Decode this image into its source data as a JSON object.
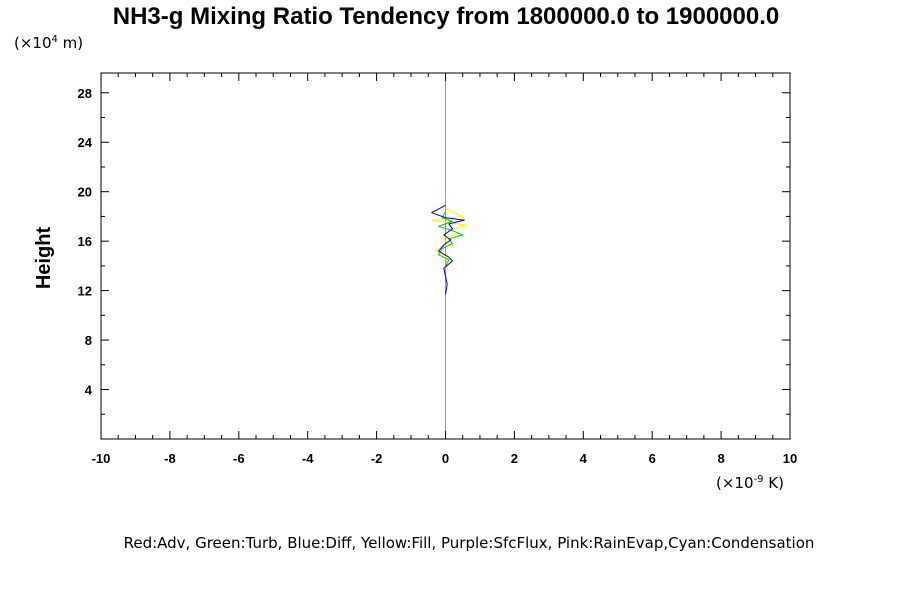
{
  "chart_data": {
    "type": "line",
    "title": "NH3-g Mixing Ratio Tendency from 1800000.0 to 1900000.0",
    "ylabel": "Height",
    "xlabel": "",
    "x_unit": {
      "prefix": "(×10",
      "exp": "-9",
      "suffix": " K)"
    },
    "y_unit": {
      "prefix": "(×10",
      "exp": "4",
      "suffix": " m)"
    },
    "xlim": [
      -10,
      10
    ],
    "ylim": [
      0,
      29.6
    ],
    "x_major_ticks": [
      -10,
      -8,
      -6,
      -4,
      -2,
      0,
      2,
      4,
      6,
      8,
      10
    ],
    "x_tick_labels": [
      "-10",
      "-8",
      "-6",
      "-4",
      "-2",
      "0",
      "2",
      "4",
      "6",
      "8",
      "10"
    ],
    "y_major_ticks": [
      4,
      8,
      12,
      16,
      20,
      24,
      28
    ],
    "y_tick_labels": [
      "4",
      "8",
      "12",
      "16",
      "20",
      "24",
      "28"
    ],
    "legend_text": "Red:Adv, Green:Turb, Blue:Diff, Yellow:Fill, Purple:SfcFlux, Pink:RainEvap,Cyan:Condensation",
    "series": [
      {
        "color": "#00d8d8",
        "x": [
          0,
          0
        ],
        "y": [
          0,
          29.6
        ]
      },
      {
        "color": "#ffff00",
        "x": [
          0,
          0.1,
          0.5,
          -0.4,
          0.6,
          0.15,
          0.3,
          -0.1,
          0.1,
          -0.3,
          0.0,
          0.05,
          0
        ],
        "y": [
          18.7,
          18.5,
          18.0,
          17.7,
          17.3,
          16.9,
          16.5,
          16.2,
          15.8,
          15.2,
          14.8,
          14.2,
          13.8
        ]
      },
      {
        "color": "#00cc00",
        "x": [
          0,
          -0.1,
          0.2,
          -0.2,
          0.25,
          0.5,
          0.1,
          0.2,
          -0.1,
          -0.2,
          0.1,
          0
        ],
        "y": [
          18.4,
          17.9,
          17.6,
          17.2,
          16.8,
          16.5,
          16.2,
          15.8,
          15.4,
          14.9,
          14.5,
          14.0
        ]
      },
      {
        "color": "#0000cc",
        "x": [
          0,
          -0.4,
          0,
          0.55,
          0.1,
          0.2,
          -0.05,
          0.15,
          -0.05,
          -0.2,
          0.1,
          0.2,
          -0.05,
          0.05,
          0
        ],
        "y": [
          18.9,
          18.3,
          17.9,
          17.7,
          17.4,
          17.0,
          16.5,
          16.1,
          15.7,
          15.2,
          14.7,
          14.4,
          13.8,
          12.5,
          11.7
        ]
      }
    ]
  }
}
